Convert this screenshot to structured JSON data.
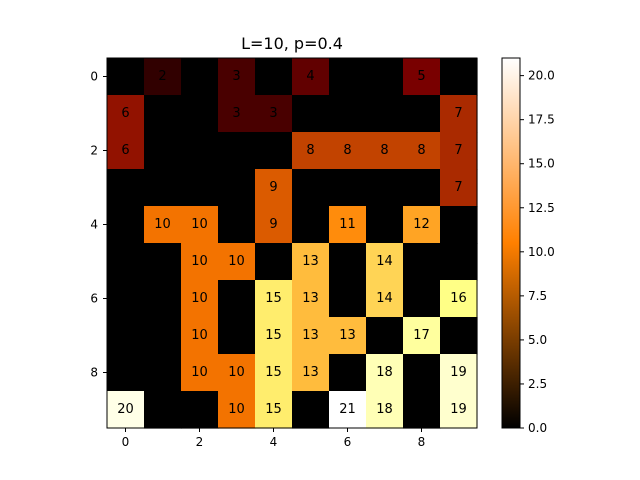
{
  "chart_data": {
    "type": "heatmap",
    "title": "L=10, p=0.4",
    "colormap": "afmhot",
    "colorbar": {
      "min": 0.0,
      "max": 21,
      "ticks": [
        "0.0",
        "2.5",
        "5.0",
        "7.5",
        "10.0",
        "12.5",
        "15.0",
        "17.5",
        "20.0"
      ]
    },
    "xticks": [
      "0",
      "2",
      "4",
      "6",
      "8"
    ],
    "yticks": [
      "0",
      "2",
      "4",
      "6",
      "8"
    ],
    "grid": false,
    "matrix": [
      [
        0,
        2,
        0,
        3,
        0,
        4,
        0,
        0,
        5,
        0
      ],
      [
        6,
        0,
        0,
        3,
        3,
        0,
        0,
        0,
        0,
        7
      ],
      [
        6,
        0,
        0,
        0,
        0,
        8,
        8,
        8,
        8,
        7
      ],
      [
        0,
        0,
        0,
        0,
        9,
        0,
        0,
        0,
        0,
        7
      ],
      [
        0,
        10,
        10,
        0,
        9,
        0,
        11,
        0,
        12,
        0
      ],
      [
        0,
        0,
        10,
        10,
        0,
        13,
        0,
        14,
        0,
        0
      ],
      [
        0,
        0,
        10,
        0,
        15,
        13,
        0,
        14,
        0,
        16
      ],
      [
        0,
        0,
        10,
        0,
        15,
        13,
        13,
        0,
        17,
        0
      ],
      [
        0,
        0,
        10,
        10,
        15,
        13,
        0,
        18,
        0,
        19
      ],
      [
        20,
        0,
        0,
        10,
        15,
        0,
        21,
        18,
        0,
        19
      ]
    ]
  }
}
